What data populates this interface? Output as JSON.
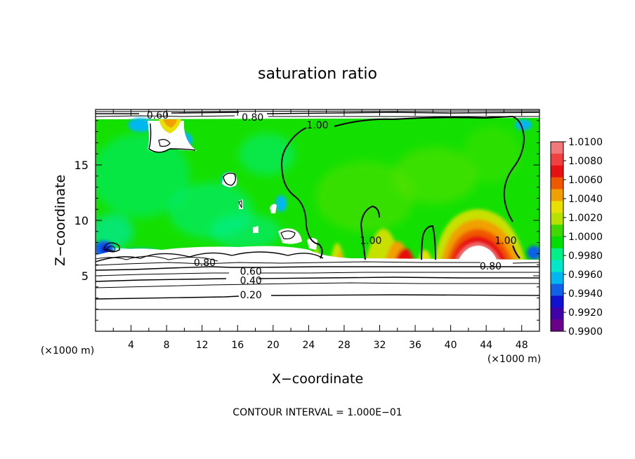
{
  "chart_data": {
    "type": "heatmap",
    "title": "saturation ratio",
    "xlabel": "X−coordinate",
    "ylabel": "Z−coordinate",
    "x_unit_label": "(×1000 m)",
    "y_unit_label": "(×1000 m)",
    "xlim": [
      0,
      50
    ],
    "ylim": [
      0,
      20
    ],
    "x_ticks": [
      "4",
      "8",
      "12",
      "16",
      "20",
      "24",
      "28",
      "32",
      "36",
      "40",
      "44",
      "48"
    ],
    "y_ticks": [
      "5",
      "10",
      "15"
    ],
    "footer": "CONTOUR INTERVAL = 1.000E−01",
    "colorbar": {
      "levels": [
        "1.0100",
        "1.0080",
        "1.0060",
        "1.0040",
        "1.0020",
        "1.0000",
        "0.9980",
        "0.9960",
        "0.9940",
        "0.9920",
        "0.9900"
      ],
      "colors": [
        "#f07878",
        "#f04040",
        "#e81010",
        "#f05800",
        "#f0a000",
        "#e8e000",
        "#b8e000",
        "#40d800",
        "#00e000",
        "#00f088",
        "#00e8c8",
        "#00b8f0",
        "#1060e8",
        "#1010d0",
        "#4000a8",
        "#6a008a"
      ]
    },
    "contour_labels": [
      {
        "text": "0.20",
        "x": 17.5,
        "z": 3.3
      },
      {
        "text": "0.40",
        "x": 17.5,
        "z": 4.6
      },
      {
        "text": "0.60",
        "x": 17.5,
        "z": 5.4
      },
      {
        "text": "0.80",
        "x": 12.3,
        "z": 6.2
      },
      {
        "text": "0.80",
        "x": 44.5,
        "z": 5.9
      },
      {
        "text": "1.00",
        "x": 25.0,
        "z": 18.6
      },
      {
        "text": "1.00",
        "x": 31.0,
        "z": 8.2
      },
      {
        "text": "1.00",
        "x": 46.2,
        "z": 8.2
      },
      {
        "text": "0.60",
        "x": 7.0,
        "z": 19.5
      },
      {
        "text": "0.80",
        "x": 17.7,
        "z": 19.3
      }
    ]
  }
}
